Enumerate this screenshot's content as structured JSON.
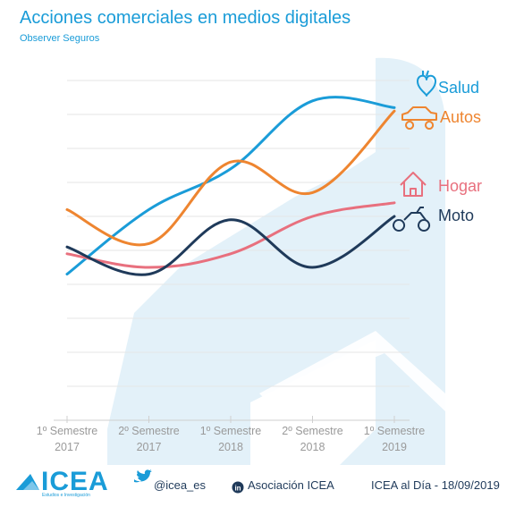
{
  "title": "Acciones comerciales en medios digitales",
  "subtitle": "Observer Seguros",
  "colors": {
    "salud": "#1a9cd8",
    "autos": "#ee8530",
    "hogar": "#e8707e",
    "moto": "#1f3a5a",
    "grid": "#e6e6e6",
    "watermark": "#e3f1f9"
  },
  "chart_data": {
    "type": "line",
    "categories": [
      [
        "1º Semestre",
        "2017"
      ],
      [
        "2º Semestre",
        "2017"
      ],
      [
        "1º Semestre",
        "2018"
      ],
      [
        "2º Semestre",
        "2018"
      ],
      [
        "1º Semestre",
        "2019"
      ]
    ],
    "ylim": [
      0,
      10
    ],
    "grid": true,
    "series": [
      {
        "name": "Salud",
        "key": "salud",
        "icon": "heart-icon",
        "values": [
          4.3,
          6.2,
          7.4,
          9.4,
          9.2
        ]
      },
      {
        "name": "Autos",
        "key": "autos",
        "icon": "car-icon",
        "values": [
          6.2,
          5.2,
          7.6,
          6.7,
          9.1
        ]
      },
      {
        "name": "Hogar",
        "key": "hogar",
        "icon": "house-icon",
        "values": [
          4.9,
          4.5,
          4.9,
          6.0,
          6.4
        ]
      },
      {
        "name": "Moto",
        "key": "moto",
        "icon": "motorcycle-icon",
        "values": [
          5.1,
          4.3,
          5.9,
          4.5,
          6.0
        ]
      }
    ]
  },
  "footer": {
    "logo": "ICEA",
    "logo_tagline": "Estudios e Investigación",
    "twitter": "@icea_es",
    "linkedin": "Asociación ICEA",
    "date": "ICEA al Día - 18/09/2019"
  }
}
